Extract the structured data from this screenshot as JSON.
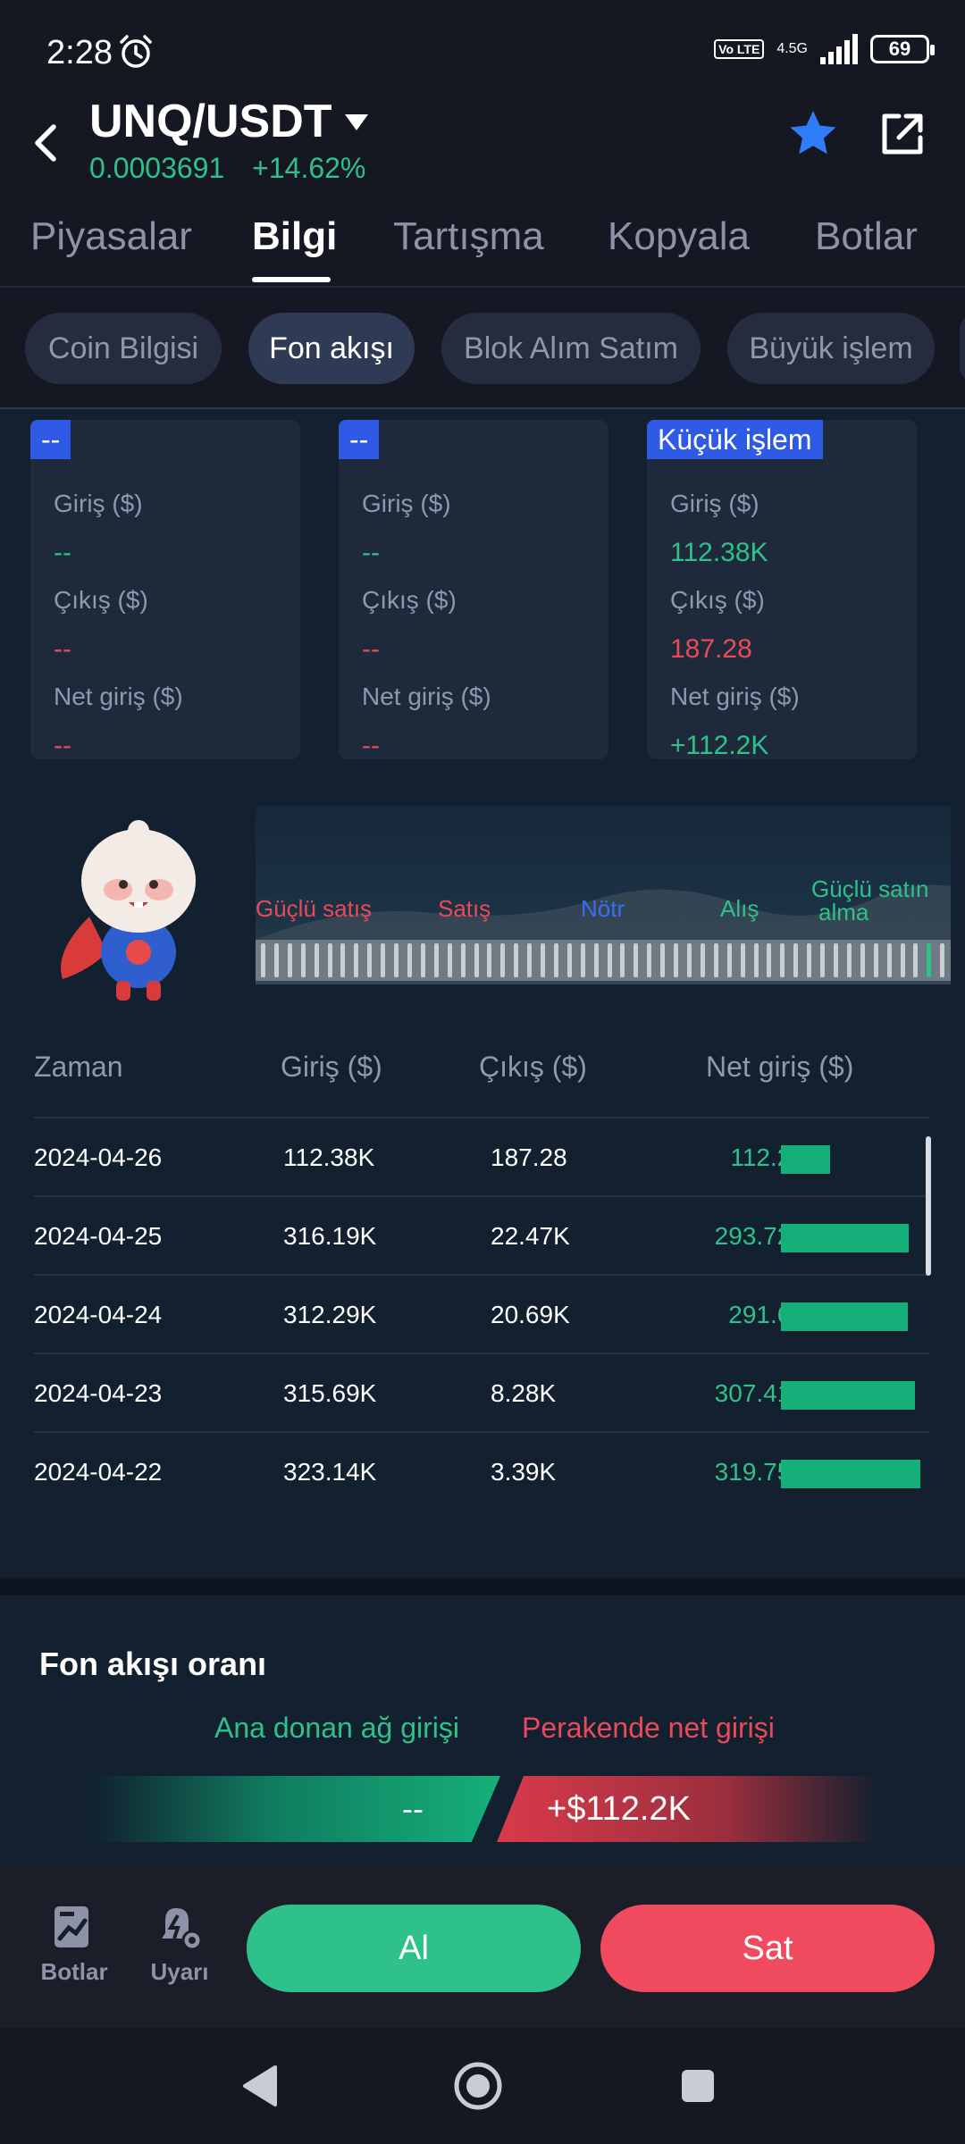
{
  "status_bar": {
    "time": "2:28",
    "network": "4.5G",
    "volte": "Vo LTE",
    "battery": "69"
  },
  "header": {
    "pair": "UNQ/USDT",
    "price": "0.0003691",
    "change": "+14.62%"
  },
  "tabs": [
    {
      "label": "Piyasalar"
    },
    {
      "label": "Bilgi",
      "active": true
    },
    {
      "label": "Tartışma"
    },
    {
      "label": "Kopyala"
    },
    {
      "label": "Botlar"
    }
  ],
  "subtabs": [
    {
      "label": "Coin Bilgisi"
    },
    {
      "label": "Fon akışı",
      "active": true
    },
    {
      "label": "Blok Alım Satım"
    },
    {
      "label": "Büyük işlem"
    }
  ],
  "cards": [
    {
      "tag": "--",
      "inflow_label": "Giriş ($)",
      "inflow": "--",
      "outflow_label": "Çıkış ($)",
      "outflow": "--",
      "net_label": "Net giriş ($)",
      "net": "--"
    },
    {
      "tag": "--",
      "inflow_label": "Giriş ($)",
      "inflow": "--",
      "outflow_label": "Çıkış ($)",
      "outflow": "--",
      "net_label": "Net giriş ($)",
      "net": "--"
    },
    {
      "tag": "Küçük işlem",
      "inflow_label": "Giriş ($)",
      "inflow": "112.38K",
      "outflow_label": "Çıkış ($)",
      "outflow": "187.28",
      "net_label": "Net giriş ($)",
      "net": "+112.2K"
    }
  ],
  "sentiment": {
    "labels": [
      "Güçlü satış",
      "Satış",
      "Nötr",
      "Alış",
      "Güçlü satın",
      "alma"
    ],
    "colors": {
      "sell": "#e84a5a",
      "neutral": "#3b6ef0",
      "buy": "#2ec18a"
    },
    "level": 0.98
  },
  "table": {
    "headers": [
      "Zaman",
      "Giriş ($)",
      "Çıkış ($)",
      "Net giriş ($)"
    ],
    "max_net": 319.75,
    "rows": [
      {
        "date": "2024-04-26",
        "inflow": "112.38K",
        "outflow": "187.28",
        "net": "112.2K",
        "net_value": 112.2
      },
      {
        "date": "2024-04-25",
        "inflow": "316.19K",
        "outflow": "22.47K",
        "net": "293.72K",
        "net_value": 293.72
      },
      {
        "date": "2024-04-24",
        "inflow": "312.29K",
        "outflow": "20.69K",
        "net": "291.6K",
        "net_value": 291.6
      },
      {
        "date": "2024-04-23",
        "inflow": "315.69K",
        "outflow": "8.28K",
        "net": "307.41K",
        "net_value": 307.41
      },
      {
        "date": "2024-04-22",
        "inflow": "323.14K",
        "outflow": "3.39K",
        "net": "319.75K",
        "net_value": 319.75
      }
    ]
  },
  "ratio": {
    "title": "Fon akışı oranı",
    "main_label": "Ana donan ağ girişi",
    "retail_label": "Perakende net girişi",
    "main_value": "--",
    "retail_value": "+$112.2K"
  },
  "bottom_bar": {
    "bots_label": "Botlar",
    "alerts_label": "Uyarı",
    "buy_label": "Al",
    "sell_label": "Sat"
  },
  "colors": {
    "green": "#2ec18a",
    "red": "#e84a5a",
    "accent": "#2e5ae6",
    "star": "#2f7cf6"
  }
}
